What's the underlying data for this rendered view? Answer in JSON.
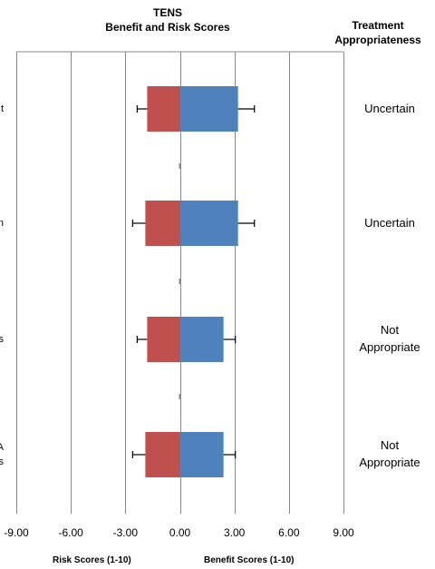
{
  "chart_data": {
    "type": "bar",
    "title_line1": "TENS",
    "title_line2": "Benefit and Risk Scores",
    "header_line1": "Treatment",
    "header_line2": "Appropriateness",
    "xlim": [
      -9,
      9
    ],
    "xticks": [
      "-9.00",
      "-6.00",
      "-3.00",
      "0.00",
      "3.00",
      "6.00",
      "9.00"
    ],
    "xtick_values": [
      -9,
      -6,
      -3,
      0,
      3,
      6,
      9
    ],
    "risk_axis_label": "Risk  Scores (1-10)",
    "benefit_axis_label": "Benefit Scores (1-10)",
    "grid": true,
    "colors": {
      "risk": "#c0504d",
      "benefit": "#4f81bd",
      "grid": "#888888",
      "error": "#000000"
    },
    "rows": [
      {
        "label": "t",
        "risk": -1.8,
        "risk_err": 0.55,
        "benefit": 3.2,
        "benefit_err": 0.9,
        "appropriateness": [
          "Uncertain"
        ]
      },
      {
        "label": "n",
        "risk": -1.9,
        "risk_err": 0.7,
        "benefit": 3.2,
        "benefit_err": 0.9,
        "appropriateness": [
          "Uncertain"
        ]
      },
      {
        "label": "s",
        "risk": -1.8,
        "risk_err": 0.55,
        "benefit": 2.4,
        "benefit_err": 0.65,
        "appropriateness": [
          "Not",
          "Appropriate"
        ]
      },
      {
        "label": "A\ns",
        "risk": -1.9,
        "risk_err": 0.7,
        "benefit": 2.4,
        "benefit_err": 0.65,
        "appropriateness": [
          "Not",
          "Appropriate"
        ]
      }
    ]
  }
}
